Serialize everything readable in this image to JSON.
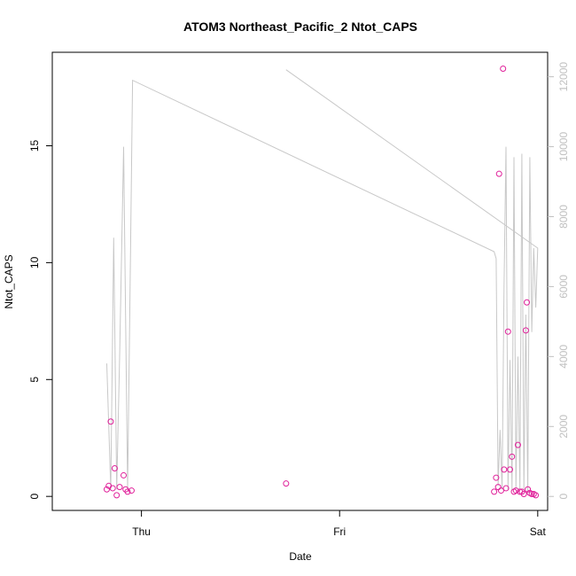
{
  "chart_data": {
    "type": "scatter",
    "title": "ATOM3 Northeast_Pacific_2 Ntot_CAPS",
    "xlabel": "Date",
    "ylabel": "Ntot_CAPS",
    "x_ticks": [
      "Thu",
      "Fri",
      "Sat"
    ],
    "y_ticks": [
      0,
      5,
      10,
      15
    ],
    "y2_ticks": [
      0,
      2000,
      4000,
      6000,
      8000,
      10000,
      12000
    ],
    "xlim": [
      -0.45,
      2.05
    ],
    "ylim": [
      -0.6,
      19.0
    ],
    "y2lim": [
      -400,
      12700
    ],
    "colors": {
      "points": "#e0209a",
      "line": "#c8c8c8",
      "frame": "#000000",
      "right_axis": "#c0c0c0"
    },
    "series": [
      {
        "marker": "circle",
        "x": [
          -0.175,
          -0.165,
          -0.155,
          -0.145,
          -0.135,
          -0.125,
          -0.11,
          -0.09,
          -0.08,
          -0.07,
          -0.05,
          0.73,
          1.78,
          1.79,
          1.8,
          1.805,
          1.815,
          1.825,
          1.83,
          1.84,
          1.85,
          1.86,
          1.87,
          1.88,
          1.89,
          1.9,
          1.91,
          1.92,
          1.93,
          1.94,
          1.945,
          1.95,
          1.96,
          1.97,
          1.98,
          1.99
        ],
        "y": [
          0.3,
          0.45,
          3.2,
          0.35,
          1.2,
          0.05,
          0.4,
          0.9,
          0.3,
          0.2,
          0.25,
          0.55,
          0.2,
          0.8,
          0.4,
          13.8,
          0.25,
          18.3,
          1.15,
          0.35,
          7.05,
          1.15,
          1.7,
          0.2,
          0.25,
          2.2,
          0.2,
          0.2,
          0.1,
          7.1,
          8.3,
          0.3,
          0.15,
          0.1,
          0.1,
          0.05
        ]
      },
      {
        "marker": "line",
        "axis": "right",
        "x": [
          -0.175,
          -0.155,
          -0.14,
          -0.125,
          -0.11,
          -0.09,
          -0.07,
          -0.055,
          -0.045,
          1.78,
          1.79,
          1.8,
          1.81,
          1.82,
          1.83,
          1.84,
          1.85,
          1.86,
          1.87,
          1.88,
          1.89,
          1.9,
          1.91,
          1.92,
          1.93,
          1.94,
          1.95,
          1.96,
          1.97,
          1.98,
          1.99,
          2.0,
          0.73,
          2.0
        ],
        "y": [
          3800,
          200,
          7400,
          200,
          4000,
          10000,
          200,
          7000,
          11900,
          7000,
          6800,
          300,
          1900,
          200,
          6000,
          10000,
          200,
          3900,
          200,
          9700,
          200,
          4000,
          200,
          9800,
          200,
          5200,
          100,
          9700,
          4700,
          7100,
          5400,
          7100,
          12200,
          7100
        ]
      }
    ]
  }
}
